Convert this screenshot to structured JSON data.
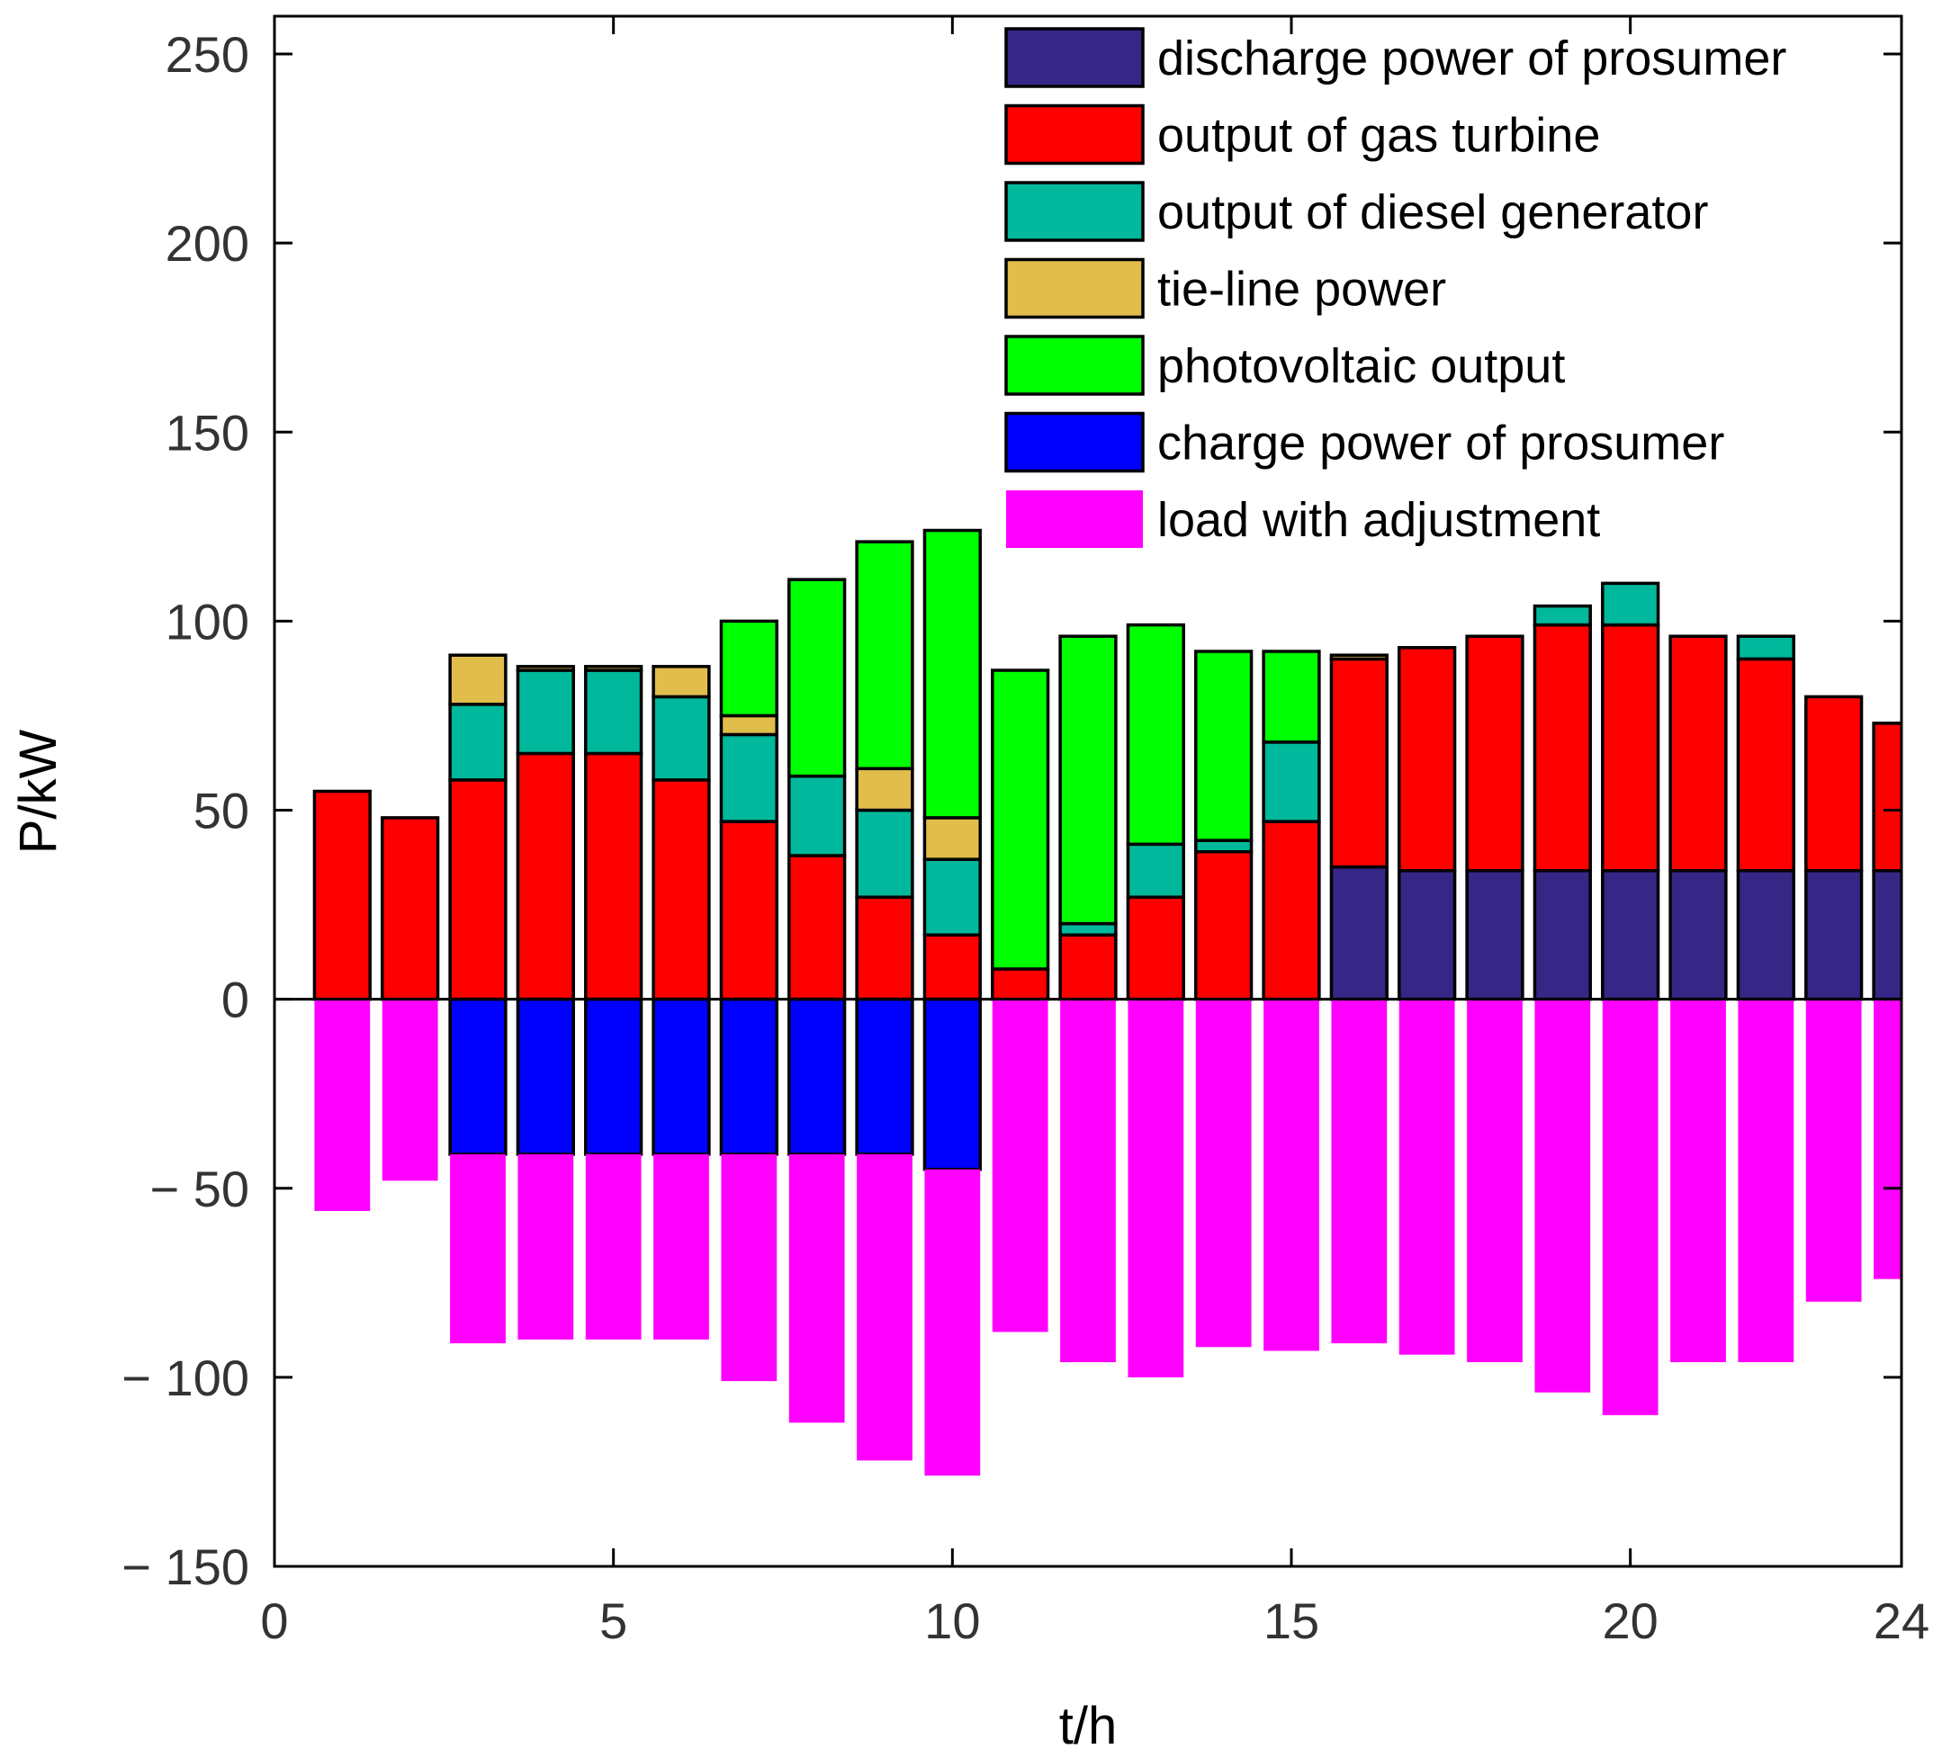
{
  "chart_data": {
    "type": "bar",
    "stacked": true,
    "title": "",
    "xlabel": "t/h",
    "ylabel": "P/kW",
    "xlim": [
      0,
      24
    ],
    "ylim": [
      -150,
      260
    ],
    "xticks": [
      0,
      5,
      10,
      15,
      20,
      24
    ],
    "yticks": [
      -150,
      -100,
      -50,
      0,
      50,
      100,
      150,
      200,
      250
    ],
    "legend_position": "top-right",
    "x": [
      1,
      2,
      3,
      4,
      5,
      6,
      7,
      8,
      9,
      10,
      11,
      12,
      13,
      14,
      15,
      16,
      17,
      18,
      19,
      20,
      21,
      22,
      23,
      24
    ],
    "series": [
      {
        "name": "discharge power of prosumer",
        "color": "#362685",
        "values": [
          0,
          0,
          0,
          0,
          0,
          0,
          0,
          0,
          0,
          0,
          0,
          0,
          0,
          0,
          0,
          35,
          34,
          34,
          34,
          34,
          34,
          34,
          34,
          34
        ]
      },
      {
        "name": "output of gas turbine",
        "color": "#ff0000",
        "values": [
          55,
          48,
          58,
          65,
          65,
          58,
          47,
          38,
          27,
          17,
          8,
          17,
          27,
          39,
          47,
          55,
          59,
          62,
          65,
          65,
          62,
          56,
          46,
          39
        ]
      },
      {
        "name": "output of diesel generator",
        "color": "#00b89b",
        "values": [
          0,
          0,
          20,
          22,
          22,
          22,
          23,
          21,
          23,
          20,
          0,
          3,
          14,
          3,
          21,
          0,
          0,
          0,
          5,
          11,
          0,
          6,
          0,
          0
        ]
      },
      {
        "name": "tie-line power",
        "color": "#e1bd4b",
        "values": [
          0,
          0,
          13,
          1,
          1,
          8,
          5,
          0,
          11,
          11,
          0,
          0,
          0,
          0,
          0,
          1,
          0,
          0,
          0,
          0,
          0,
          0,
          0,
          0
        ]
      },
      {
        "name": "photovoltaic output",
        "color": "#00ff00",
        "values": [
          0,
          0,
          0,
          0,
          0,
          0,
          25,
          52,
          60,
          76,
          79,
          76,
          58,
          50,
          24,
          0,
          0,
          0,
          0,
          0,
          0,
          0,
          0,
          0
        ]
      },
      {
        "name": "charge power of prosumer",
        "color": "#0000ff",
        "values": [
          0,
          0,
          -41,
          -41,
          -41,
          -41,
          -41,
          -41,
          -41,
          -45,
          0,
          0,
          0,
          0,
          0,
          0,
          0,
          0,
          0,
          0,
          0,
          0,
          0,
          0
        ]
      },
      {
        "name": "load with adjustment",
        "color": "#ff00ff",
        "values": [
          -56,
          -48,
          -50,
          -49,
          -49,
          -49,
          -60,
          -71,
          -81,
          -81,
          -88,
          -96,
          -100,
          -92,
          -93,
          -91,
          -94,
          -96,
          -104,
          -110,
          -96,
          -96,
          -80,
          -74
        ]
      }
    ]
  }
}
